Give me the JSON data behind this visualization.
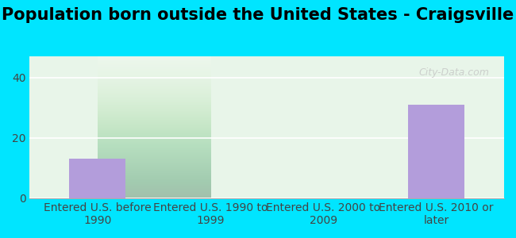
{
  "title": "Population born outside the United States - Craigsville",
  "categories": [
    "Entered U.S. before\n1990",
    "Entered U.S. 1990 to\n1999",
    "Entered U.S. 2000 to\n2009",
    "Entered U.S. 2010 or\nlater"
  ],
  "values": [
    13,
    0,
    0,
    31
  ],
  "bar_color": "#b39ddb",
  "background_outer": "#00e5ff",
  "background_inner_top": "#f0fff0",
  "background_inner_bottom": "#d4edda",
  "ylim": [
    0,
    47
  ],
  "yticks": [
    0,
    20,
    40
  ],
  "watermark": "City-Data.com",
  "title_fontsize": 15,
  "tick_fontsize": 10
}
